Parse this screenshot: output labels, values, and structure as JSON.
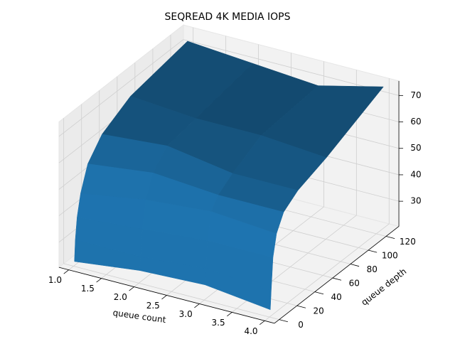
{
  "chart_data": {
    "type": "surface",
    "title": "SEQREAD 4K MEDIA IOPS",
    "x_label": "queue count",
    "y_label": "queue depth",
    "x": [
      1,
      2,
      3,
      4
    ],
    "y": [
      1,
      2,
      4,
      8,
      16,
      32,
      64,
      128
    ],
    "values": [
      [
        22,
        25,
        26,
        23
      ],
      [
        30,
        30,
        32,
        30
      ],
      [
        38,
        40,
        42,
        42
      ],
      [
        46,
        50,
        52,
        50
      ],
      [
        55,
        58,
        56,
        56
      ],
      [
        62,
        64,
        60,
        60
      ],
      [
        68,
        66,
        66,
        64
      ],
      [
        72,
        70,
        68,
        74
      ]
    ],
    "color": "#1f77b4",
    "xlim": [
      0.85,
      4.15
    ],
    "ylim": [
      -5.35,
      134.35
    ],
    "zlim": [
      20.5,
      75.5
    ],
    "xticks": [
      {
        "value": 1,
        "label": "1.0"
      },
      {
        "value": 1.5,
        "label": "1.5"
      },
      {
        "value": 2,
        "label": "2.0"
      },
      {
        "value": 2.5,
        "label": "2.5"
      },
      {
        "value": 3,
        "label": "3.0"
      },
      {
        "value": 3.5,
        "label": "3.5"
      },
      {
        "value": 4,
        "label": "4.0"
      }
    ],
    "yticks": [
      0,
      20,
      40,
      60,
      80,
      100,
      120
    ],
    "zticks": [
      30,
      40,
      50,
      60,
      70
    ],
    "grid": true
  }
}
